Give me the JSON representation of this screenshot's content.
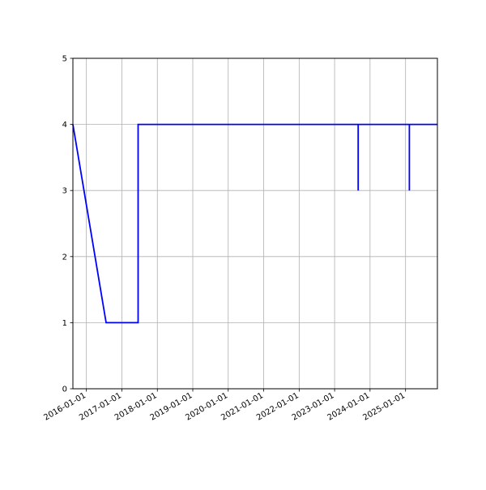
{
  "chart_data": {
    "type": "line",
    "title": "",
    "xlabel": "",
    "ylabel": "",
    "xlim": [
      "2015-08-15",
      "2025-11-25"
    ],
    "ylim": [
      0,
      5
    ],
    "grid": true,
    "x_ticks": [
      "2016-01-01",
      "2017-01-01",
      "2018-01-01",
      "2019-01-01",
      "2020-01-01",
      "2021-01-01",
      "2022-01-01",
      "2023-01-01",
      "2024-01-01",
      "2025-01-01"
    ],
    "y_ticks": [
      "0",
      "1",
      "2",
      "3",
      "4",
      "5"
    ],
    "series": [
      {
        "color": "#0000ff",
        "points": [
          {
            "x": "2015-08-15",
            "y": 4
          },
          {
            "x": "2016-07-22",
            "y": 1
          },
          {
            "x": "2017-06-17",
            "y": 1
          },
          {
            "x": "2017-06-17",
            "y": 4
          },
          {
            "x": "2023-09-01",
            "y": 4
          },
          {
            "x": "2023-09-01",
            "y": 3
          },
          {
            "x": "2023-09-01",
            "y": 4
          },
          {
            "x": "2025-02-09",
            "y": 4
          },
          {
            "x": "2025-02-09",
            "y": 3
          },
          {
            "x": "2025-02-09",
            "y": 4
          },
          {
            "x": "2025-11-25",
            "y": 4
          }
        ]
      }
    ]
  }
}
